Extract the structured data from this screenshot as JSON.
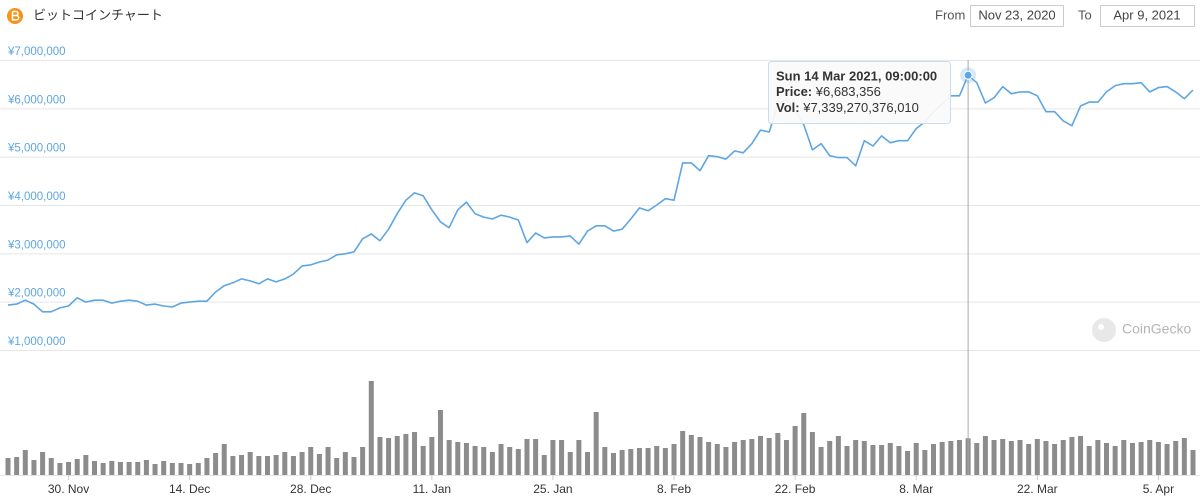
{
  "header": {
    "title": "ビットコインチャート",
    "from_label": "From",
    "from": "Nov 23, 2020",
    "to_label": "To",
    "to": "Apr 9, 2021"
  },
  "chart_data": {
    "type": "line",
    "x": [
      "2020-11-23",
      "2020-11-24",
      "2020-11-25",
      "2020-11-26",
      "2020-11-27",
      "2020-11-28",
      "2020-11-29",
      "2020-11-30",
      "2020-12-01",
      "2020-12-02",
      "2020-12-03",
      "2020-12-04",
      "2020-12-05",
      "2020-12-06",
      "2020-12-07",
      "2020-12-08",
      "2020-12-09",
      "2020-12-10",
      "2020-12-11",
      "2020-12-12",
      "2020-12-13",
      "2020-12-14",
      "2020-12-15",
      "2020-12-16",
      "2020-12-17",
      "2020-12-18",
      "2020-12-19",
      "2020-12-20",
      "2020-12-21",
      "2020-12-22",
      "2020-12-23",
      "2020-12-24",
      "2020-12-25",
      "2020-12-26",
      "2020-12-27",
      "2020-12-28",
      "2020-12-29",
      "2020-12-30",
      "2020-12-31",
      "2021-01-01",
      "2021-01-02",
      "2021-01-03",
      "2021-01-04",
      "2021-01-05",
      "2021-01-06",
      "2021-01-07",
      "2021-01-08",
      "2021-01-09",
      "2021-01-10",
      "2021-01-11",
      "2021-01-12",
      "2021-01-13",
      "2021-01-14",
      "2021-01-15",
      "2021-01-16",
      "2021-01-17",
      "2021-01-18",
      "2021-01-19",
      "2021-01-20",
      "2021-01-21",
      "2021-01-22",
      "2021-01-23",
      "2021-01-24",
      "2021-01-25",
      "2021-01-26",
      "2021-01-27",
      "2021-01-28",
      "2021-01-29",
      "2021-01-30",
      "2021-01-31",
      "2021-02-01",
      "2021-02-02",
      "2021-02-03",
      "2021-02-04",
      "2021-02-05",
      "2021-02-06",
      "2021-02-07",
      "2021-02-08",
      "2021-02-09",
      "2021-02-10",
      "2021-02-11",
      "2021-02-12",
      "2021-02-13",
      "2021-02-14",
      "2021-02-15",
      "2021-02-16",
      "2021-02-17",
      "2021-02-18",
      "2021-02-19",
      "2021-02-20",
      "2021-02-21",
      "2021-02-22",
      "2021-02-23",
      "2021-02-24",
      "2021-02-25",
      "2021-02-26",
      "2021-02-27",
      "2021-02-28",
      "2021-03-01",
      "2021-03-02",
      "2021-03-03",
      "2021-03-04",
      "2021-03-05",
      "2021-03-06",
      "2021-03-07",
      "2021-03-08",
      "2021-03-09",
      "2021-03-10",
      "2021-03-11",
      "2021-03-12",
      "2021-03-13",
      "2021-03-14",
      "2021-03-15",
      "2021-03-16",
      "2021-03-17",
      "2021-03-18",
      "2021-03-19",
      "2021-03-20",
      "2021-03-21",
      "2021-03-22",
      "2021-03-23",
      "2021-03-24",
      "2021-03-25",
      "2021-03-26",
      "2021-03-27",
      "2021-03-28",
      "2021-03-29",
      "2021-03-30",
      "2021-03-31",
      "2021-04-01",
      "2021-04-02",
      "2021-04-03",
      "2021-04-04",
      "2021-04-05",
      "2021-04-06",
      "2021-04-07",
      "2021-04-08",
      "2021-04-09"
    ],
    "xlim": [
      "2020-11-23",
      "2021-04-09"
    ],
    "xticks": [
      {
        "value": "2020-11-30",
        "label": "30. Nov"
      },
      {
        "value": "2020-12-14",
        "label": "14. Dec"
      },
      {
        "value": "2020-12-28",
        "label": "28. Dec"
      },
      {
        "value": "2021-01-11",
        "label": "11. Jan"
      },
      {
        "value": "2021-01-25",
        "label": "25. Jan"
      },
      {
        "value": "2021-02-08",
        "label": "8. Feb"
      },
      {
        "value": "2021-02-22",
        "label": "22. Feb"
      },
      {
        "value": "2021-03-08",
        "label": "8. Mar"
      },
      {
        "value": "2021-03-22",
        "label": "22. Mar"
      },
      {
        "value": "2021-04-05",
        "label": "5. Apr"
      }
    ],
    "ylim": [
      1000000,
      7000000
    ],
    "yticks": [
      {
        "value": 1000000,
        "label": "¥1,000,000"
      },
      {
        "value": 2000000,
        "label": "¥2,000,000"
      },
      {
        "value": 3000000,
        "label": "¥3,000,000"
      },
      {
        "value": 4000000,
        "label": "¥4,000,000"
      },
      {
        "value": 5000000,
        "label": "¥5,000,000"
      },
      {
        "value": 6000000,
        "label": "¥6,000,000"
      },
      {
        "value": 7000000,
        "label": "¥7,000,000"
      }
    ],
    "y2lim": [
      0,
      21000000000000.0
    ],
    "grid": true,
    "series": [
      {
        "color": "#5ea6e3",
        "values": [
          1930000,
          1950000,
          2030000,
          1950000,
          1790000,
          1790000,
          1870000,
          1910000,
          2080000,
          1990000,
          2030000,
          2030000,
          1970000,
          2010000,
          2030000,
          2010000,
          1930000,
          1950000,
          1910000,
          1890000,
          1970000,
          1990000,
          2010000,
          2010000,
          2200000,
          2330000,
          2390000,
          2470000,
          2430000,
          2370000,
          2470000,
          2410000,
          2470000,
          2570000,
          2740000,
          2760000,
          2820000,
          2860000,
          2970000,
          2990000,
          3030000,
          3300000,
          3400000,
          3260000,
          3500000,
          3820000,
          4100000,
          4250000,
          4190000,
          3900000,
          3650000,
          3530000,
          3900000,
          4060000,
          3820000,
          3750000,
          3710000,
          3790000,
          3750000,
          3690000,
          3220000,
          3420000,
          3320000,
          3340000,
          3340000,
          3360000,
          3190000,
          3460000,
          3570000,
          3570000,
          3460000,
          3500000,
          3710000,
          3940000,
          3880000,
          4000000,
          4130000,
          4100000,
          4870000,
          4870000,
          4710000,
          5020000,
          5000000,
          4950000,
          5120000,
          5080000,
          5270000,
          5550000,
          5510000,
          6070000,
          6200000,
          5970000,
          5660000,
          5140000,
          5270000,
          5020000,
          4980000,
          4980000,
          4810000,
          5330000,
          5220000,
          5430000,
          5290000,
          5330000,
          5330000,
          5580000,
          5720000,
          5930000,
          6090000,
          6260000,
          6260000,
          6683356,
          6530000,
          6110000,
          6220000,
          6450000,
          6300000,
          6340000,
          6340000,
          6260000,
          5930000,
          5930000,
          5740000,
          5640000,
          6050000,
          6130000,
          6130000,
          6340000,
          6470000,
          6510000,
          6510000,
          6530000,
          6340000,
          6430000,
          6450000,
          6340000,
          6200000,
          6380000
        ]
      },
      {
        "type": "bar",
        "axis": "y2",
        "color": "#8c8c8c",
        "values": [
          3400000000000.0,
          3600000000000.0,
          5000000000000.0,
          3000000000000.0,
          4600000000000.0,
          3400000000000.0,
          2400000000000.0,
          2600000000000.0,
          3200000000000.0,
          4000000000000.0,
          2800000000000.0,
          2400000000000.0,
          2800000000000.0,
          2600000000000.0,
          2600000000000.0,
          2600000000000.0,
          3000000000000.0,
          2200000000000.0,
          2800000000000.0,
          2400000000000.0,
          2400000000000.0,
          2200000000000.0,
          2400000000000.0,
          3400000000000.0,
          4400000000000.0,
          6200000000000.0,
          3800000000000.0,
          4000000000000.0,
          4600000000000.0,
          3800000000000.0,
          3800000000000.0,
          4000000000000.0,
          4600000000000.0,
          3800000000000.0,
          4600000000000.0,
          5600000000000.0,
          4200000000000.0,
          5600000000000.0,
          3400000000000.0,
          4600000000000.0,
          3600000000000.0,
          5600000000000.0,
          18800000000000.0,
          7600000000000.0,
          7400000000000.0,
          7800000000000.0,
          8200000000000.0,
          8600000000000.0,
          5800000000000.0,
          7600000000000.0,
          13000000000000.0,
          7000000000000.0,
          6600000000000.0,
          6400000000000.0,
          5800000000000.0,
          5600000000000.0,
          4600000000000.0,
          6200000000000.0,
          5600000000000.0,
          5200000000000.0,
          7200000000000.0,
          7200000000000.0,
          4000000000000.0,
          7000000000000.0,
          7000000000000.0,
          4600000000000.0,
          7000000000000.0,
          4600000000000.0,
          12600000000000.0,
          5600000000000.0,
          4400000000000.0,
          5000000000000.0,
          5200000000000.0,
          5400000000000.0,
          5400000000000.0,
          5800000000000.0,
          5400000000000.0,
          6200000000000.0,
          8800000000000.0,
          8000000000000.0,
          7600000000000.0,
          6600000000000.0,
          6200000000000.0,
          5600000000000.0,
          6600000000000.0,
          7000000000000.0,
          7200000000000.0,
          7800000000000.0,
          7400000000000.0,
          8400000000000.0,
          7000000000000.0,
          9800000000000.0,
          12400000000000.0,
          8600000000000.0,
          5600000000000.0,
          6800000000000.0,
          7800000000000.0,
          5800000000000.0,
          7000000000000.0,
          6800000000000.0,
          6000000000000.0,
          6000000000000.0,
          6400000000000.0,
          5800000000000.0,
          4800000000000.0,
          6400000000000.0,
          5000000000000.0,
          6200000000000.0,
          6600000000000.0,
          6800000000000.0,
          7000000000000.0,
          7339270376010,
          6400000000000.0,
          7800000000000.0,
          7000000000000.0,
          7200000000000.0,
          6800000000000.0,
          7000000000000.0,
          6200000000000.0,
          7200000000000.0,
          6800000000000.0,
          6200000000000.0,
          7000000000000.0,
          7600000000000.0,
          7800000000000.0,
          5800000000000.0,
          7000000000000.0,
          6400000000000.0,
          5800000000000.0,
          7000000000000.0,
          6400000000000.0,
          6600000000000.0,
          7000000000000.0,
          6600000000000.0,
          6200000000000.0,
          6800000000000.0,
          7400000000000.0,
          5000000000000.0
        ]
      }
    ],
    "tooltip": {
      "x": "2021-03-14",
      "title": "Sun 14 Mar 2021, 09:00:00",
      "price_label": "Price:",
      "price": "¥6,683,356",
      "vol_label": "Vol:",
      "vol": "¥7,339,270,376,010"
    },
    "watermark": "CoinGecko"
  }
}
